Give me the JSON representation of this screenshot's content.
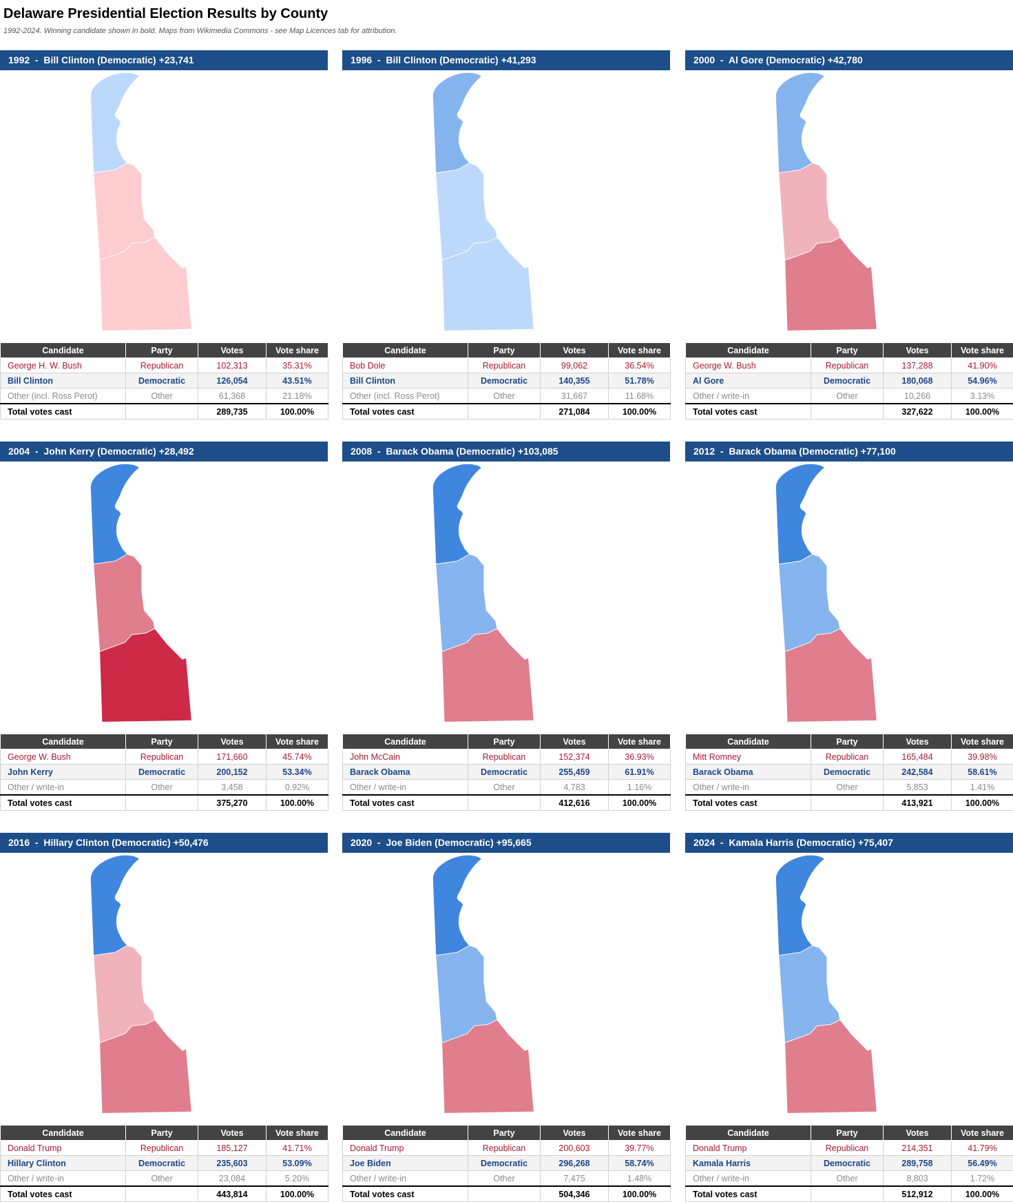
{
  "header": {
    "title": "Delaware Presidential Election Results by County",
    "subtitle": "1992-2024. Winning candidate shown in bold. Maps from Wikimedia Commons - see Map Licences tab for attribution."
  },
  "table_columns": [
    "Candidate",
    "Party",
    "Votes",
    "Vote share"
  ],
  "total_label": "Total votes cast",
  "panels": [
    {
      "header": "1992  -  Bill Clinton (Democratic) +23,741",
      "map_colors": [
        "#bcd9fc",
        "#ffccd0",
        "#ffccd0"
      ],
      "rows": [
        [
          "George H. W. Bush",
          "Republican",
          "102,313",
          "35.31%"
        ],
        [
          "Bill Clinton",
          "Democratic",
          "126,054",
          "43.51%"
        ],
        [
          "Other (incl. Ross Perot)",
          "Other",
          "61,368",
          "21.18%"
        ]
      ],
      "total": {
        "votes": "289,735",
        "share": "100.00%"
      }
    },
    {
      "header": "1996  -  Bill Clinton (Democratic) +41,293",
      "map_colors": [
        "#86b4ee",
        "#bcd9fc",
        "#bcd9fc"
      ],
      "rows": [
        [
          "Bob Dole",
          "Republican",
          "99,062",
          "36.54%"
        ],
        [
          "Bill Clinton",
          "Democratic",
          "140,355",
          "51.78%"
        ],
        [
          "Other (incl. Ross Perot)",
          "Other",
          "31,667",
          "11.68%"
        ]
      ],
      "total": {
        "votes": "271,084",
        "share": "100.00%"
      }
    },
    {
      "header": "2000  -  Al Gore (Democratic) +42,780",
      "map_colors": [
        "#86b4ee",
        "#f0b3bb",
        "#e07e8e"
      ],
      "rows": [
        [
          "George W. Bush",
          "Republican",
          "137,288",
          "41.90%"
        ],
        [
          "Al Gore",
          "Democratic",
          "180,068",
          "54.96%"
        ],
        [
          "Other / write-in",
          "Other",
          "10,266",
          "3.13%"
        ]
      ],
      "total": {
        "votes": "327,622",
        "share": "100.00%"
      }
    },
    {
      "header": "2004  -  John Kerry (Democratic) +28,492",
      "map_colors": [
        "#3f86de",
        "#e07e8e",
        "#cc2a47"
      ],
      "rows": [
        [
          "George W. Bush",
          "Republican",
          "171,660",
          "45.74%"
        ],
        [
          "John Kerry",
          "Democratic",
          "200,152",
          "53.34%"
        ],
        [
          "Other / write-in",
          "Other",
          "3,458",
          "0.92%"
        ]
      ],
      "total": {
        "votes": "375,270",
        "share": "100.00%"
      }
    },
    {
      "header": "2008  -  Barack Obama (Democratic) +103,085",
      "map_colors": [
        "#3f86de",
        "#86b4ee",
        "#e07e8e"
      ],
      "rows": [
        [
          "John McCain",
          "Republican",
          "152,374",
          "36.93%"
        ],
        [
          "Barack Obama",
          "Democratic",
          "255,459",
          "61.91%"
        ],
        [
          "Other / write-in",
          "Other",
          "4,783",
          "1.16%"
        ]
      ],
      "total": {
        "votes": "412,616",
        "share": "100.00%"
      }
    },
    {
      "header": "2012  -  Barack Obama (Democratic) +77,100",
      "map_colors": [
        "#3f86de",
        "#86b4ee",
        "#e07e8e"
      ],
      "rows": [
        [
          "Mitt Romney",
          "Republican",
          "165,484",
          "39.98%"
        ],
        [
          "Barack Obama",
          "Democratic",
          "242,584",
          "58.61%"
        ],
        [
          "Other / write-in",
          "Other",
          "5,853",
          "1.41%"
        ]
      ],
      "total": {
        "votes": "413,921",
        "share": "100.00%"
      }
    },
    {
      "header": "2016  -  Hillary Clinton (Democratic) +50,476",
      "map_colors": [
        "#3f86de",
        "#f0b3bb",
        "#e07e8e"
      ],
      "rows": [
        [
          "Donald Trump",
          "Republican",
          "185,127",
          "41.71%"
        ],
        [
          "Hillary Clinton",
          "Democratic",
          "235,603",
          "53.09%"
        ],
        [
          "Other / write-in",
          "Other",
          "23,084",
          "5.20%"
        ]
      ],
      "total": {
        "votes": "443,814",
        "share": "100.00%"
      }
    },
    {
      "header": "2020  -  Joe Biden (Democratic) +95,665",
      "map_colors": [
        "#3f86de",
        "#86b4ee",
        "#e07e8e"
      ],
      "rows": [
        [
          "Donald Trump",
          "Republican",
          "200,603",
          "39.77%"
        ],
        [
          "Joe Biden",
          "Democratic",
          "296,268",
          "58.74%"
        ],
        [
          "Other / write-in",
          "Other",
          "7,475",
          "1.48%"
        ]
      ],
      "total": {
        "votes": "504,346",
        "share": "100.00%"
      }
    },
    {
      "header": "2024  -  Kamala Harris (Democratic) +75,407",
      "map_colors": [
        "#3f86de",
        "#86b4ee",
        "#e07e8e"
      ],
      "rows": [
        [
          "Donald Trump",
          "Republican",
          "214,351",
          "41.79%"
        ],
        [
          "Kamala Harris",
          "Democratic",
          "289,758",
          "56.49%"
        ],
        [
          "Other / write-in",
          "Other",
          "8,803",
          "1.72%"
        ]
      ],
      "total": {
        "votes": "512,912",
        "share": "100.00%"
      }
    }
  ]
}
